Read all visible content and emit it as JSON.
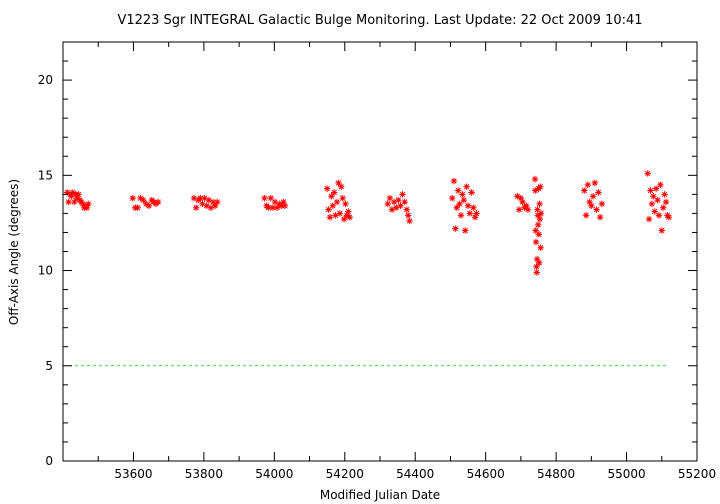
{
  "chart_data": {
    "type": "scatter",
    "title": "V1223 Sgr   INTEGRAL Galactic Bulge Monitoring.  Last Update: 22 Oct 2009 10:41",
    "xlabel": "Modified Julian Date",
    "ylabel": "Off-Axis Angle (degrees)",
    "xlim": [
      53400,
      55200
    ],
    "ylim": [
      0,
      22
    ],
    "xticks": [
      53600,
      53800,
      54000,
      54200,
      54400,
      54600,
      54800,
      55000,
      55200
    ],
    "yticks": [
      0,
      5,
      10,
      15,
      20
    ],
    "grid": false,
    "marker": "asterisk",
    "colors": {
      "points": "#ff0000",
      "reference_line": "#00cc00",
      "axes": "#000000"
    },
    "reference_line": {
      "y": 5,
      "x_range": [
        53400,
        55120
      ],
      "style": "dashed"
    },
    "series": [
      {
        "points": [
          [
            53412,
            14.1
          ],
          [
            53416,
            13.6
          ],
          [
            53420,
            14.0
          ],
          [
            53424,
            13.9
          ],
          [
            53428,
            14.1
          ],
          [
            53432,
            13.6
          ],
          [
            53436,
            14.0
          ],
          [
            53440,
            13.8
          ],
          [
            53444,
            14.0
          ],
          [
            53448,
            13.7
          ],
          [
            53452,
            13.6
          ],
          [
            53456,
            13.5
          ],
          [
            53460,
            13.3
          ],
          [
            53464,
            13.4
          ],
          [
            53468,
            13.3
          ],
          [
            53472,
            13.5
          ],
          [
            53598,
            13.8
          ],
          [
            53605,
            13.3
          ],
          [
            53612,
            13.3
          ],
          [
            53620,
            13.8
          ],
          [
            53628,
            13.7
          ],
          [
            53636,
            13.5
          ],
          [
            53644,
            13.4
          ],
          [
            53652,
            13.7
          ],
          [
            53658,
            13.6
          ],
          [
            53664,
            13.5
          ],
          [
            53670,
            13.6
          ],
          [
            53772,
            13.8
          ],
          [
            53778,
            13.3
          ],
          [
            53784,
            13.7
          ],
          [
            53790,
            13.8
          ],
          [
            53796,
            13.5
          ],
          [
            53802,
            13.8
          ],
          [
            53808,
            13.4
          ],
          [
            53814,
            13.7
          ],
          [
            53820,
            13.3
          ],
          [
            53826,
            13.6
          ],
          [
            53832,
            13.4
          ],
          [
            53838,
            13.6
          ],
          [
            53972,
            13.8
          ],
          [
            53978,
            13.4
          ],
          [
            53984,
            13.3
          ],
          [
            53990,
            13.8
          ],
          [
            53996,
            13.3
          ],
          [
            54002,
            13.6
          ],
          [
            54008,
            13.3
          ],
          [
            54014,
            13.5
          ],
          [
            54020,
            13.4
          ],
          [
            54026,
            13.6
          ],
          [
            54030,
            13.4
          ],
          [
            54150,
            14.3
          ],
          [
            54154,
            13.2
          ],
          [
            54158,
            12.8
          ],
          [
            54162,
            13.9
          ],
          [
            54166,
            13.4
          ],
          [
            54170,
            14.1
          ],
          [
            54174,
            12.9
          ],
          [
            54178,
            13.6
          ],
          [
            54182,
            14.6
          ],
          [
            54186,
            13.0
          ],
          [
            54190,
            14.4
          ],
          [
            54194,
            13.8
          ],
          [
            54198,
            12.7
          ],
          [
            54202,
            13.5
          ],
          [
            54206,
            12.9
          ],
          [
            54210,
            13.1
          ],
          [
            54214,
            12.8
          ],
          [
            54322,
            13.5
          ],
          [
            54328,
            13.8
          ],
          [
            54334,
            13.2
          ],
          [
            54340,
            13.6
          ],
          [
            54346,
            13.3
          ],
          [
            54352,
            13.7
          ],
          [
            54358,
            13.4
          ],
          [
            54364,
            14.0
          ],
          [
            54370,
            13.6
          ],
          [
            54376,
            13.2
          ],
          [
            54380,
            12.9
          ],
          [
            54384,
            12.6
          ],
          [
            54505,
            13.8
          ],
          [
            54510,
            14.7
          ],
          [
            54514,
            12.2
          ],
          [
            54518,
            13.3
          ],
          [
            54522,
            14.2
          ],
          [
            54526,
            13.5
          ],
          [
            54530,
            12.9
          ],
          [
            54534,
            14.0
          ],
          [
            54538,
            13.7
          ],
          [
            54542,
            12.1
          ],
          [
            54546,
            14.4
          ],
          [
            54550,
            13.4
          ],
          [
            54555,
            13.0
          ],
          [
            54560,
            14.1
          ],
          [
            54565,
            13.3
          ],
          [
            54570,
            12.8
          ],
          [
            54574,
            13.0
          ],
          [
            54690,
            13.9
          ],
          [
            54695,
            13.2
          ],
          [
            54700,
            13.8
          ],
          [
            54705,
            13.6
          ],
          [
            54710,
            13.3
          ],
          [
            54715,
            13.4
          ],
          [
            54720,
            13.2
          ],
          [
            54740,
            14.8
          ],
          [
            54741,
            14.2
          ],
          [
            54742,
            12.1
          ],
          [
            54743,
            11.5
          ],
          [
            54744,
            10.2
          ],
          [
            54745,
            9.9
          ],
          [
            54746,
            10.6
          ],
          [
            54747,
            13.2
          ],
          [
            54748,
            12.9
          ],
          [
            54749,
            12.4
          ],
          [
            54750,
            14.3
          ],
          [
            54751,
            11.9
          ],
          [
            54752,
            10.4
          ],
          [
            54753,
            13.5
          ],
          [
            54754,
            12.7
          ],
          [
            54755,
            14.4
          ],
          [
            54756,
            11.2
          ],
          [
            54757,
            13.0
          ],
          [
            54880,
            14.2
          ],
          [
            54885,
            12.9
          ],
          [
            54890,
            14.5
          ],
          [
            54895,
            13.6
          ],
          [
            54900,
            13.4
          ],
          [
            54905,
            13.9
          ],
          [
            54910,
            14.6
          ],
          [
            54915,
            13.2
          ],
          [
            54920,
            14.1
          ],
          [
            54925,
            12.8
          ],
          [
            54930,
            13.5
          ],
          [
            55060,
            15.1
          ],
          [
            55064,
            12.7
          ],
          [
            55068,
            14.2
          ],
          [
            55072,
            13.5
          ],
          [
            55076,
            13.9
          ],
          [
            55080,
            13.1
          ],
          [
            55084,
            14.3
          ],
          [
            55088,
            13.7
          ],
          [
            55092,
            12.9
          ],
          [
            55096,
            14.5
          ],
          [
            55100,
            12.1
          ],
          [
            55104,
            13.3
          ],
          [
            55108,
            14.0
          ],
          [
            55112,
            13.6
          ],
          [
            55116,
            12.9
          ],
          [
            55120,
            12.8
          ]
        ]
      }
    ]
  }
}
